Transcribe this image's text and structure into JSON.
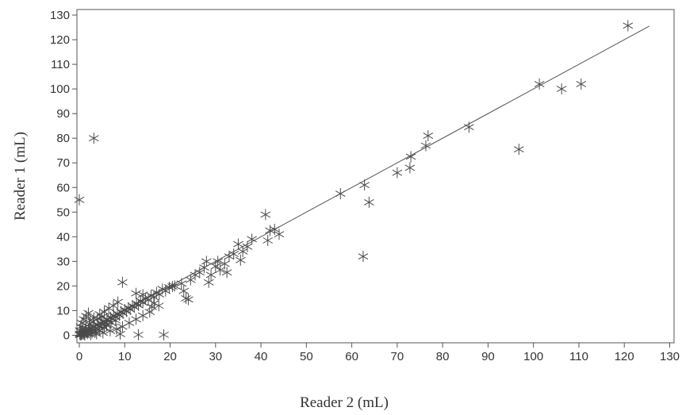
{
  "chart_data": {
    "type": "scatter",
    "title": "",
    "xlabel": "Reader 2 (mL)",
    "ylabel": "Reader 1 (mL)",
    "xlim": [
      0,
      130
    ],
    "ylim": [
      0,
      130
    ],
    "x_ticks": [
      "0",
      "10",
      "20",
      "30",
      "40",
      "50",
      "60",
      "70",
      "80",
      "90",
      "100",
      "110",
      "120",
      "130"
    ],
    "y_ticks": [
      "0",
      "10",
      "20",
      "30",
      "40",
      "50",
      "60",
      "70",
      "80",
      "90",
      "100",
      "110",
      "120",
      "130"
    ],
    "grid": false,
    "marker": "asterisk",
    "fit_line": {
      "from": [
        0,
        0
      ],
      "to": [
        125.5,
        125.5
      ]
    },
    "points": [
      [
        0.2,
        0.3
      ],
      [
        0.5,
        0.8
      ],
      [
        0.8,
        1.2
      ],
      [
        1.0,
        0.5
      ],
      [
        1.3,
        1.8
      ],
      [
        1.6,
        1.2
      ],
      [
        2.0,
        2.5
      ],
      [
        2.3,
        1.6
      ],
      [
        2.6,
        3.0
      ],
      [
        3.0,
        2.2
      ],
      [
        3.3,
        3.6
      ],
      [
        3.6,
        2.8
      ],
      [
        4.0,
        4.2
      ],
      [
        4.3,
        3.5
      ],
      [
        4.7,
        5.0
      ],
      [
        5.0,
        4.3
      ],
      [
        5.4,
        5.8
      ],
      [
        5.8,
        5.0
      ],
      [
        6.1,
        6.5
      ],
      [
        6.5,
        5.8
      ],
      [
        6.9,
        7.3
      ],
      [
        7.2,
        6.6
      ],
      [
        7.6,
        8.0
      ],
      [
        8.0,
        7.4
      ],
      [
        8.4,
        8.8
      ],
      [
        8.8,
        8.1
      ],
      [
        9.2,
        9.6
      ],
      [
        9.6,
        8.9
      ],
      [
        10.0,
        10.4
      ],
      [
        10.4,
        9.7
      ],
      [
        10.8,
        11.2
      ],
      [
        11.2,
        10.5
      ],
      [
        11.7,
        12.0
      ],
      [
        12.1,
        11.4
      ],
      [
        12.6,
        13.0
      ],
      [
        13.0,
        12.2
      ],
      [
        13.5,
        14.0
      ],
      [
        14.0,
        13.2
      ],
      [
        14.6,
        15.0
      ],
      [
        15.2,
        14.3
      ],
      [
        15.8,
        16.2
      ],
      [
        16.4,
        15.5
      ],
      [
        17.0,
        17.4
      ],
      [
        17.6,
        16.6
      ],
      [
        18.3,
        18.8
      ],
      [
        19.0,
        18.0
      ],
      [
        19.8,
        19.5
      ],
      [
        20.5,
        19.8
      ],
      [
        0.1,
        2.0
      ],
      [
        0.3,
        3.5
      ],
      [
        0.6,
        5.0
      ],
      [
        1.0,
        6.5
      ],
      [
        1.5,
        7.8
      ],
      [
        2.0,
        9.0
      ],
      [
        2.4,
        6.0
      ],
      [
        3.2,
        7.0
      ],
      [
        4.5,
        8.5
      ],
      [
        5.5,
        9.5
      ],
      [
        6.5,
        11.0
      ],
      [
        7.5,
        12.0
      ],
      [
        8.5,
        13.5
      ],
      [
        1.2,
        0.1
      ],
      [
        2.5,
        0.2
      ],
      [
        3.8,
        0.6
      ],
      [
        5.2,
        1.0
      ],
      [
        6.8,
        1.8
      ],
      [
        8.2,
        2.5
      ],
      [
        9.5,
        3.5
      ],
      [
        11.0,
        5.0
      ],
      [
        12.5,
        6.5
      ],
      [
        14.0,
        8.0
      ],
      [
        15.5,
        9.5
      ],
      [
        9.0,
        0.5
      ],
      [
        13.0,
        0.2
      ],
      [
        18.6,
        0.2
      ],
      [
        9.5,
        21.5
      ],
      [
        12.5,
        17.0
      ],
      [
        14.0,
        16.5
      ],
      [
        16.5,
        13.0
      ],
      [
        17.5,
        12.0
      ],
      [
        16.0,
        11.5
      ],
      [
        0.0,
        55.0
      ],
      [
        3.2,
        80.0
      ],
      [
        0.2,
        0.1
      ],
      [
        0.4,
        0.2
      ],
      [
        0.7,
        0.4
      ],
      [
        1.1,
        0.9
      ],
      [
        1.8,
        0.7
      ],
      [
        2.8,
        1.0
      ],
      [
        3.5,
        1.5
      ],
      [
        4.5,
        2.0
      ],
      [
        5.5,
        3.0
      ],
      [
        6.0,
        4.0
      ],
      [
        7.0,
        5.0
      ],
      [
        8.0,
        6.0
      ],
      [
        0.1,
        0.6
      ],
      [
        0.5,
        1.5
      ],
      [
        1.5,
        2.8
      ],
      [
        2.2,
        4.5
      ],
      [
        3.0,
        5.5
      ],
      [
        4.0,
        6.8
      ],
      [
        5.0,
        7.5
      ],
      [
        21.0,
        20.0
      ],
      [
        22.5,
        21.0
      ],
      [
        23.0,
        18.0
      ],
      [
        23.5,
        15.0
      ],
      [
        24.0,
        14.5
      ],
      [
        24.5,
        22.5
      ],
      [
        25.5,
        24.5
      ],
      [
        26.5,
        25.5
      ],
      [
        27.5,
        27.5
      ],
      [
        28.0,
        30.0
      ],
      [
        28.5,
        21.5
      ],
      [
        29.0,
        24.5
      ],
      [
        30.0,
        28.0
      ],
      [
        30.5,
        30.0
      ],
      [
        31.0,
        26.5
      ],
      [
        32.0,
        29.0
      ],
      [
        32.5,
        25.5
      ],
      [
        33.0,
        32.0
      ],
      [
        34.0,
        33.0
      ],
      [
        35.0,
        37.0
      ],
      [
        35.5,
        30.5
      ],
      [
        36.0,
        34.0
      ],
      [
        37.0,
        36.0
      ],
      [
        38.0,
        39.0
      ],
      [
        41.0,
        49.0
      ],
      [
        41.5,
        38.5
      ],
      [
        42.0,
        42.5
      ],
      [
        43.0,
        43.0
      ],
      [
        44.0,
        41.0
      ],
      [
        57.5,
        57.5
      ],
      [
        62.5,
        32.0
      ],
      [
        62.8,
        61.0
      ],
      [
        63.8,
        54.0
      ],
      [
        70.0,
        66.0
      ],
      [
        72.8,
        68.0
      ],
      [
        73.0,
        72.5
      ],
      [
        76.3,
        77.0
      ],
      [
        76.8,
        81.0
      ],
      [
        85.8,
        84.5
      ],
      [
        96.8,
        75.5
      ],
      [
        101.3,
        102.0
      ],
      [
        106.2,
        100.0
      ],
      [
        110.5,
        102.0
      ],
      [
        120.8,
        125.7
      ]
    ]
  }
}
